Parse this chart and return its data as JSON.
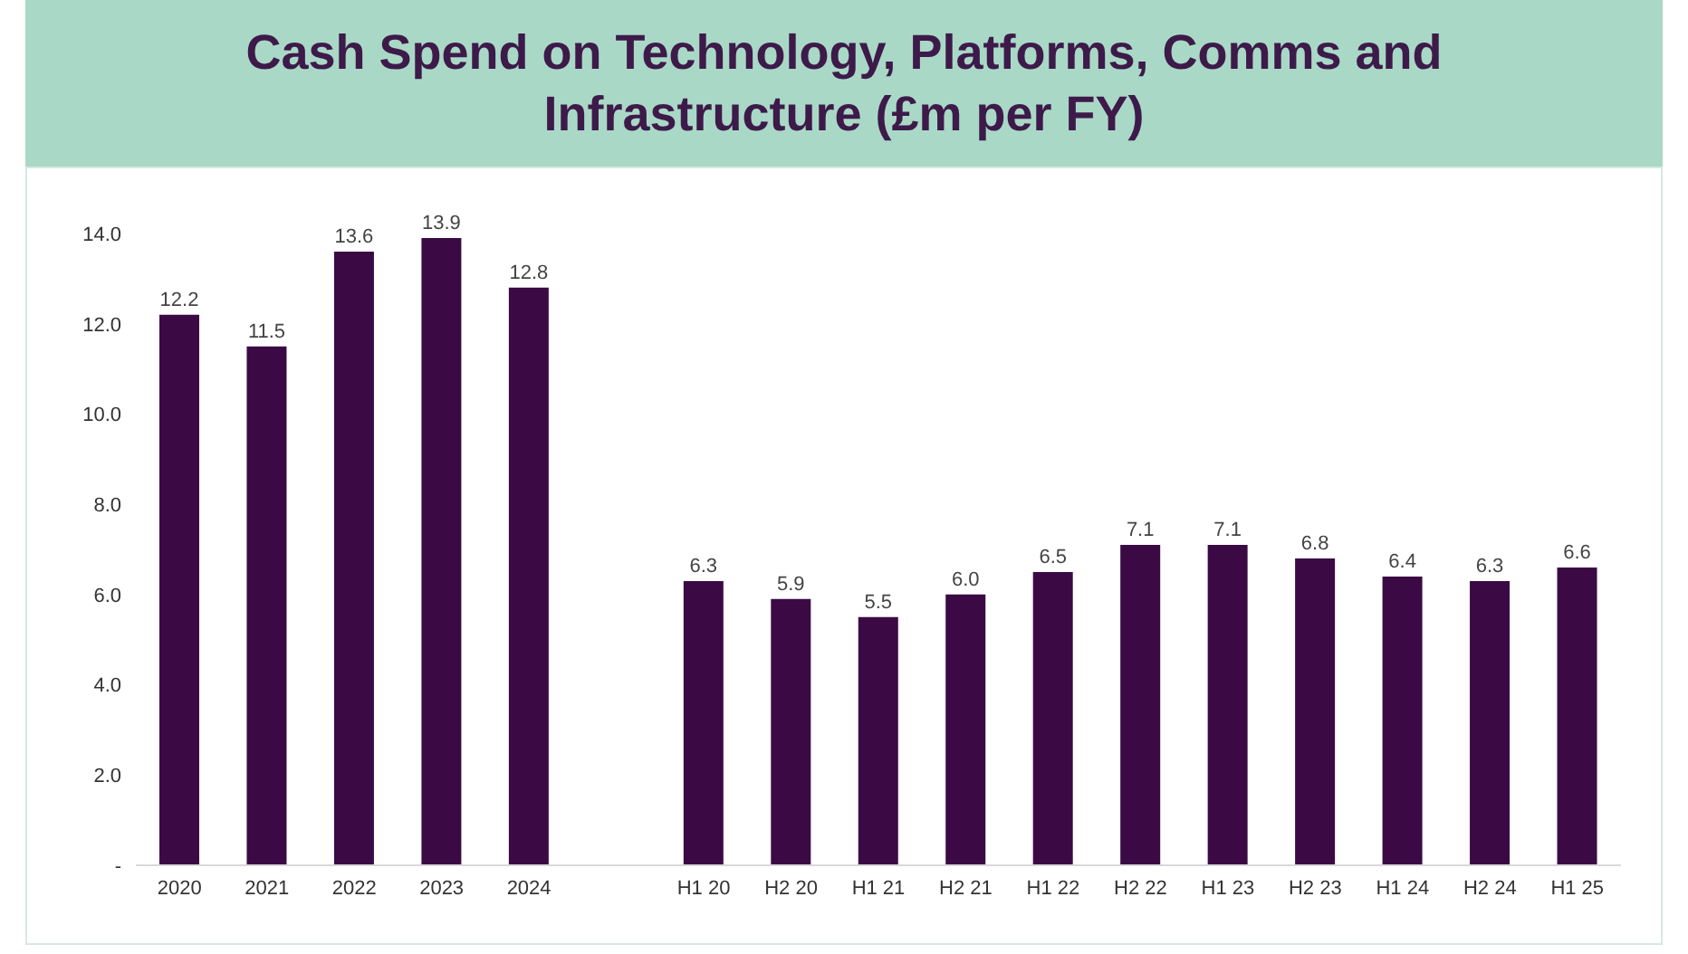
{
  "chart_data": {
    "type": "bar",
    "title": "Cash Spend on Technology, Platforms, Comms and Infrastructure (£m per FY)",
    "categories": [
      "2020",
      "2021",
      "2022",
      "2023",
      "2024",
      null,
      "H1 20",
      "H2 20",
      "H1 21",
      "H2 21",
      "H1 22",
      "H2 22",
      "H1 23",
      "H2 23",
      "H1 24",
      "H2 24",
      "H1 25"
    ],
    "values": [
      12.2,
      11.5,
      13.6,
      13.9,
      12.8,
      null,
      6.3,
      5.9,
      5.5,
      6.0,
      6.5,
      7.1,
      7.1,
      6.8,
      6.4,
      6.3,
      6.6
    ],
    "value_labels": [
      "12.2",
      "11.5",
      "13.6",
      "13.9",
      "12.8",
      null,
      "6.3",
      "5.9",
      "5.5",
      "6.0",
      "6.5",
      "7.1",
      "7.1",
      "6.8",
      "6.4",
      "6.3",
      "6.6"
    ],
    "color": "#3b0a45",
    "ylim": [
      0,
      14
    ],
    "yticks": [
      {
        "value": 0,
        "label": "-"
      },
      {
        "value": 2,
        "label": "2.0"
      },
      {
        "value": 4,
        "label": "4.0"
      },
      {
        "value": 6,
        "label": "6.0"
      },
      {
        "value": 8,
        "label": "8.0"
      },
      {
        "value": 10,
        "label": "10.0"
      },
      {
        "value": 12,
        "label": "12.0"
      },
      {
        "value": 14,
        "label": "14.0"
      }
    ],
    "grid": false
  }
}
